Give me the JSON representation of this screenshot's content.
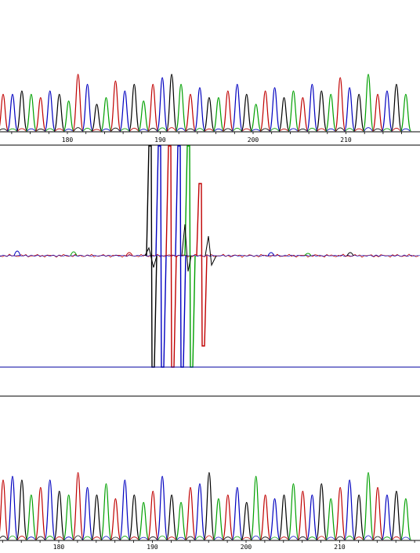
{
  "chart_data": [
    {
      "type": "line",
      "panel": "top-trace",
      "x_ticks": [
        180,
        190,
        200,
        210
      ],
      "x_tick_labels": [
        "180",
        "190",
        "200",
        "210"
      ],
      "colors": {
        "A": "#00a000",
        "C": "#0000c0",
        "G": "#000000",
        "T": "#c00000"
      },
      "series": [
        {
          "values": [
            0.55,
            0.55,
            0.6,
            0.55,
            0.5,
            0.6,
            0.55,
            0.45,
            0.85,
            0.7,
            0.4,
            0.5,
            0.75,
            0.6,
            0.7,
            0.45,
            0.7,
            0.8,
            0.85,
            0.7,
            0.55,
            0.65,
            0.5,
            0.5,
            0.6,
            0.7,
            0.55,
            0.4,
            0.6,
            0.65,
            0.5,
            0.6,
            0.5,
            0.7,
            0.6,
            0.55,
            0.8,
            0.65,
            0.55,
            0.85,
            0.55,
            0.6,
            0.7,
            0.55
          ]
        }
      ]
    },
    {
      "type": "line",
      "panel": "difference-trace",
      "colors": {
        "A": "#00a000",
        "C": "#0000c0",
        "G": "#000000",
        "T": "#c00000"
      },
      "series": [
        {
          "values": [
            -1,
            1,
            -1,
            1,
            -0.9,
            1,
            -0.8,
            0.6,
            -0.7
          ]
        }
      ]
    },
    {
      "type": "line",
      "panel": "bottom-trace",
      "x_ticks": [
        180,
        190,
        200,
        210
      ],
      "x_tick_labels": [
        "180",
        "190",
        "200",
        "210"
      ],
      "colors": {
        "A": "#00a000",
        "C": "#0000c0",
        "G": "#000000",
        "T": "#c00000"
      },
      "series": [
        {
          "values": [
            0.8,
            0.85,
            0.8,
            0.6,
            0.7,
            0.8,
            0.65,
            0.6,
            0.9,
            0.7,
            0.6,
            0.75,
            0.55,
            0.8,
            0.6,
            0.5,
            0.65,
            0.85,
            0.6,
            0.5,
            0.7,
            0.75,
            0.9,
            0.55,
            0.6,
            0.7,
            0.5,
            0.85,
            0.6,
            0.55,
            0.6,
            0.75,
            0.65,
            0.6,
            0.75,
            0.55,
            0.7,
            0.8,
            0.6,
            0.9,
            0.7,
            0.6,
            0.65,
            0.55
          ]
        }
      ]
    }
  ]
}
